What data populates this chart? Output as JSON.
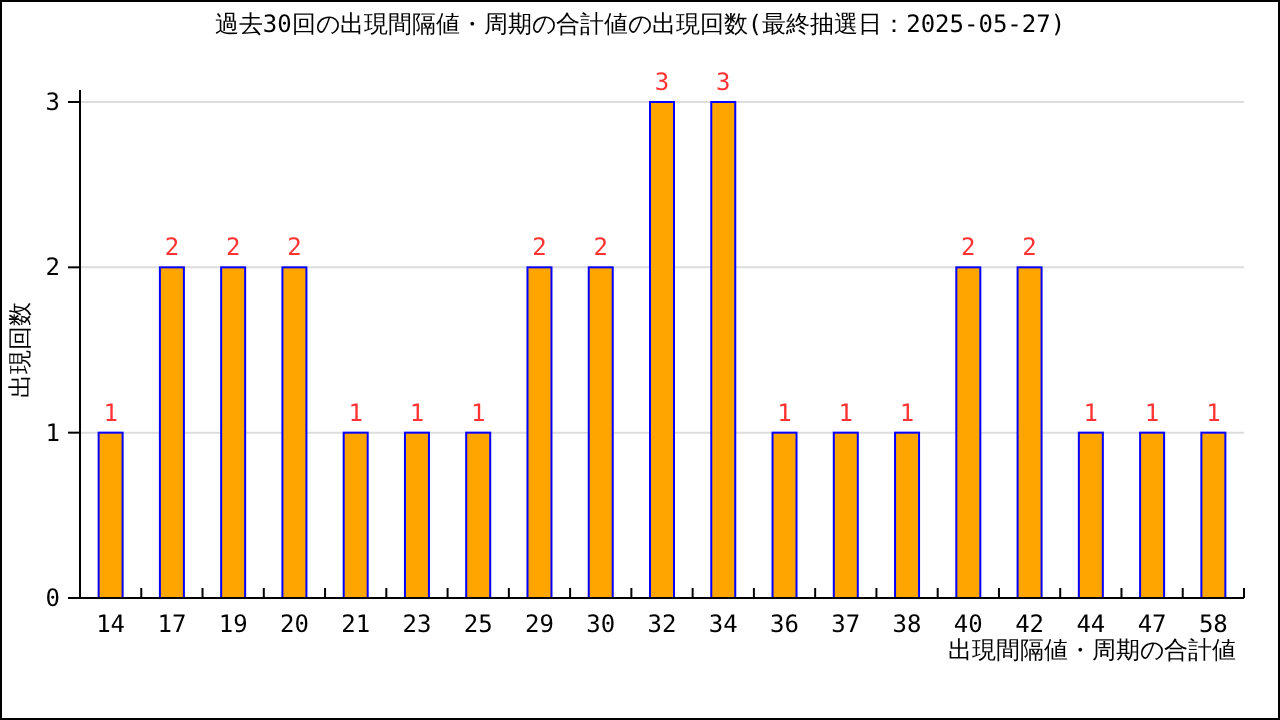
{
  "chart_data": {
    "type": "bar",
    "title": "過去30回の出現間隔値・周期の合計値の出現回数(最終抽選日：2025-05-27)",
    "xlabel": "出現間隔値・周期の合計値",
    "ylabel": "出現回数",
    "categories": [
      "14",
      "17",
      "19",
      "20",
      "21",
      "23",
      "25",
      "29",
      "30",
      "32",
      "34",
      "36",
      "37",
      "38",
      "40",
      "42",
      "44",
      "47",
      "58"
    ],
    "values": [
      1,
      2,
      2,
      2,
      1,
      1,
      1,
      2,
      2,
      3,
      3,
      1,
      1,
      1,
      2,
      2,
      1,
      1,
      1
    ],
    "color": "#ffa500",
    "ylim": [
      0,
      3
    ],
    "yticks": [
      0,
      1,
      2,
      3
    ],
    "grid": "y",
    "data_labels": true
  }
}
